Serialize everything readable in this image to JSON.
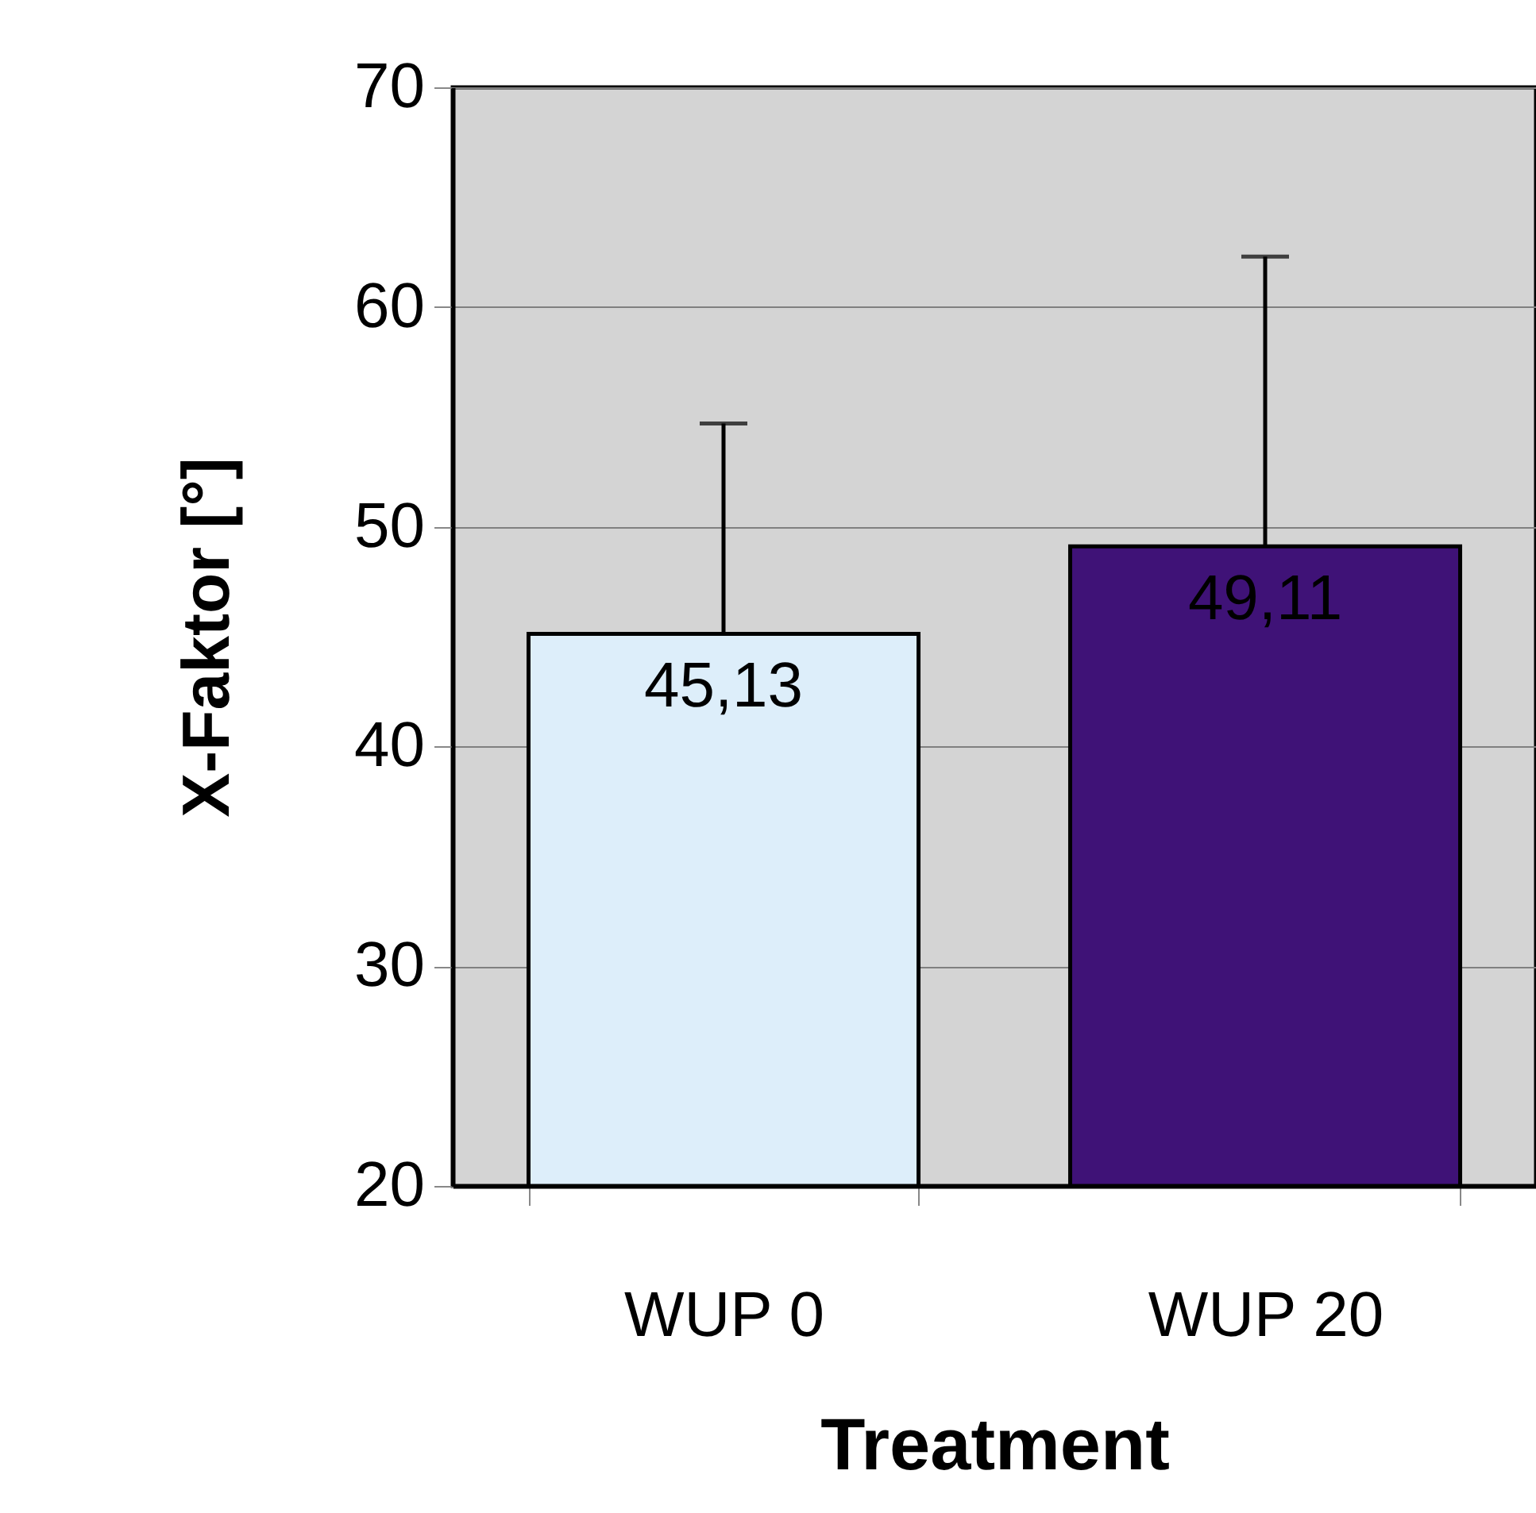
{
  "chart_data": {
    "type": "bar",
    "xlabel": "Treatment",
    "ylabel": "X-Faktor [°]",
    "categories": [
      "WUP 0",
      "WUP 20"
    ],
    "values": [
      45.13,
      49.11
    ],
    "colors": [
      "#ddeefa",
      "#3f1277"
    ],
    "errors": [
      [
        45.13,
        54.7
      ],
      [
        49.11,
        62.3
      ]
    ],
    "value_labels": [
      "45,13",
      "49,11"
    ],
    "ylim": [
      20,
      70
    ],
    "yticks": [
      20,
      30,
      40,
      50,
      60,
      70
    ],
    "grid": "y"
  }
}
